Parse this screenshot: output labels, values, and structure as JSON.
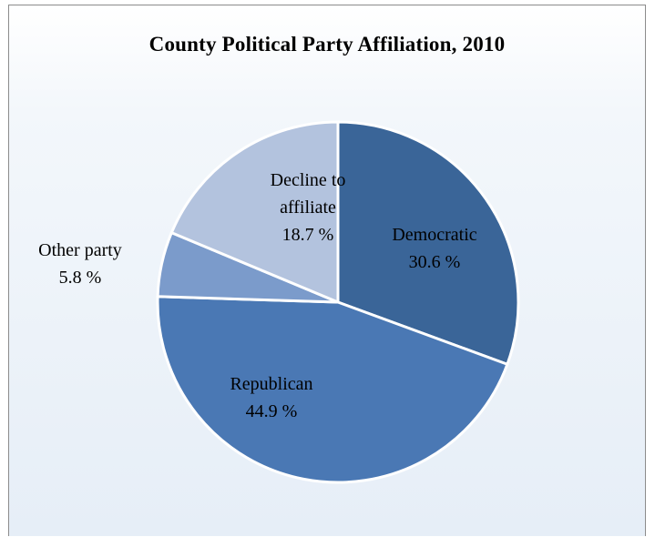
{
  "chart_data": {
    "type": "pie",
    "title": "County Political  Party Affiliation, 2010",
    "slices": [
      {
        "name": "Democratic",
        "label_lines": [
          "Democratic"
        ],
        "value": 30.6,
        "value_label": "30.6 %",
        "color": "#3a6598"
      },
      {
        "name": "Republican",
        "label_lines": [
          "Republican"
        ],
        "value": 44.9,
        "value_label": "44.9 %",
        "color": "#4a78b4"
      },
      {
        "name": "Other party",
        "label_lines": [
          "Other party"
        ],
        "value": 5.8,
        "value_label": "5.8 %",
        "color": "#7b9bcb"
      },
      {
        "name": "Decline to affiliate",
        "label_lines": [
          "Decline to",
          "affiliate"
        ],
        "value": 18.7,
        "value_label": "18.7 %",
        "color": "#b3c3de"
      }
    ]
  }
}
